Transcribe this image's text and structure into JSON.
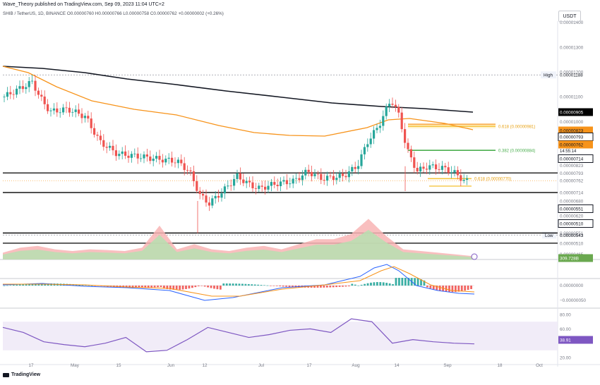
{
  "header": {
    "publisher": "Wave_Theory published on TradingView.com, Sep 09, 2023 11:04 UTC+2",
    "symbol": "SHIB / TetherUS, 1D, BINANCE",
    "ohlc": "O0.00000760 H0.00000766 L0.00000758 C0.00000762 +0.00000002 (+0.26%)",
    "currency": "USDT",
    "brand": "TradingView"
  },
  "price_axis": {
    "ticks": [
      "0.00001400",
      "0.00001300",
      "0.00001200",
      "0.00001100",
      "0.00001000",
      "0.00000940",
      "0.00000900",
      "0.00000860",
      "0.00000823",
      "0.00000793",
      "0.00000762",
      "0.00000714",
      "0.00000680",
      "0.00000620",
      "0.00000580",
      "0.00000551",
      "0.00000543",
      "0.00000510",
      "0.00000465"
    ],
    "high_label": "High",
    "high_value": "0.00001188",
    "low_label": "Low",
    "low_value": "0.00000543",
    "countdown": "14:55:14"
  },
  "badges": [
    {
      "text": "0.00000905",
      "bg": "#000000",
      "fg": "#ffffff"
    },
    {
      "text": "0.00000823",
      "bg": "#f7931a",
      "fg": "#131722"
    },
    {
      "text": "0.00000793",
      "bg": "#ffffff",
      "fg": "#131722"
    },
    {
      "text": "0.00000762",
      "bg": "#f7931a",
      "fg": "#131722"
    },
    {
      "text": "0.00000714",
      "bg": "#ffffff",
      "fg": "#131722"
    },
    {
      "text": "0.00000551",
      "bg": "#ffffff",
      "fg": "#131722"
    },
    {
      "text": "0.00000510",
      "bg": "#ffffff",
      "fg": "#131722"
    },
    {
      "text": "309.728B",
      "bg": "#6aa84f",
      "fg": "#ffffff"
    },
    {
      "text": "38.91",
      "bg": "#7e57c2",
      "fg": "#ffffff"
    }
  ],
  "fib_labels": [
    {
      "text": "0.618 (0.00000981)",
      "color": "#e8a317"
    },
    {
      "text": "0.382 (0.00000884)",
      "color": "#4caf50"
    },
    {
      "text": "0.618 (0.00000770)",
      "color": "#e8a317"
    }
  ],
  "macd_axis": [
    "0.00000000",
    "−0.00000050"
  ],
  "rsi_axis": [
    "80.00",
    "60.00",
    "20.00"
  ],
  "x_axis": [
    "17",
    "May",
    "15",
    "Jun",
    "12",
    "Jul",
    "17",
    "Aug",
    "14",
    "Sep",
    "18",
    "Oct"
  ],
  "colors": {
    "up": "#26a69a",
    "down": "#ef5350",
    "ma_long": "#131722",
    "ma_short": "#f7931a",
    "macd_line": "#2962ff",
    "signal_line": "#f7931a",
    "rsi": "#7e57c2",
    "rsi_band": "#ede7f6",
    "vol_up": "#b7dfb0",
    "vol_down": "#f8b4b4"
  },
  "chart_data": {
    "type": "candlestick",
    "panels": [
      "price",
      "volume",
      "macd",
      "rsi"
    ],
    "series": [
      {
        "name": "SHIB / TetherUS",
        "x": [
          "Apr 12",
          "Apr 19",
          "Apr 26",
          "May 03",
          "May 10",
          "May 17",
          "May 24",
          "May 31",
          "Jun 07",
          "Jun 10",
          "Jun 14",
          "Jun 21",
          "Jun 28",
          "Jul 05",
          "Jul 12",
          "Jul 19",
          "Jul 26",
          "Aug 02",
          "Aug 06",
          "Aug 10",
          "Aug 13",
          "Aug 16",
          "Aug 20",
          "Aug 24",
          "Aug 28",
          "Sep 01",
          "Sep 05",
          "Sep 09"
        ],
        "y": [
          1.11e-05,
          1.16e-05,
          1.04e-05,
          9.9e-06,
          8.7e-06,
          8.6e-06,
          8.55e-06,
          8.35e-06,
          7.9e-06,
          6.6e-06,
          6.9e-06,
          7.3e-06,
          7.6e-06,
          7.7e-06,
          7.45e-06,
          7.8e-06,
          7.75e-06,
          7.9e-06,
          9.4e-06,
          1.08e-05,
          1.09e-05,
          8.9e-06,
          8.1e-06,
          8.1e-06,
          7.9e-06,
          7.6e-06,
          7.62e-06,
          7.62e-06
        ]
      },
      {
        "name": "MA long",
        "y": [
          1.13e-05,
          1.12e-05,
          1.09e-05,
          1.05e-05,
          1.01e-05,
          9.9e-06,
          9.6e-06,
          9.4e-06,
          9.3e-06,
          9.25e-06,
          9.15e-06,
          9.05e-06
        ]
      },
      {
        "name": "MA short",
        "y": [
          1.09e-05,
          1.04e-05,
          9.6e-06,
          9e-06,
          8.6e-06,
          8.3e-06,
          8.1e-06,
          7.9e-06,
          8e-06,
          8.6e-06,
          8.55e-06,
          8.23e-06
        ]
      },
      {
        "name": "RSI",
        "y": [
          62,
          55,
          42,
          38,
          35,
          40,
          48,
          28,
          30,
          45,
          62,
          55,
          48,
          52,
          58,
          60,
          55,
          74,
          70,
          40,
          45,
          42,
          40,
          39
        ]
      },
      {
        "name": "Volume",
        "y": [
          20,
          35,
          40,
          30,
          25,
          30,
          28,
          25,
          35,
          100,
          30,
          45,
          30,
          25,
          35,
          40,
          30,
          45,
          60,
          60,
          75,
          120,
          70,
          30,
          25,
          20,
          15,
          10
        ]
      }
    ],
    "levels": {
      "0.00001188": "High",
      "0.00000543": "Low",
      "0.00000981": "0.618",
      "0.00000884": "0.382",
      "0.00000770": "0.618",
      "0.00000905": "MA long",
      "0.00000823": "MA short",
      "0.00000793": "horizontal",
      "0.00000714": "horizontal",
      "0.00000551": "horizontal",
      "0.00000510": "horizontal"
    },
    "rsi_last": 38.91,
    "volume_last": "309.728B"
  }
}
